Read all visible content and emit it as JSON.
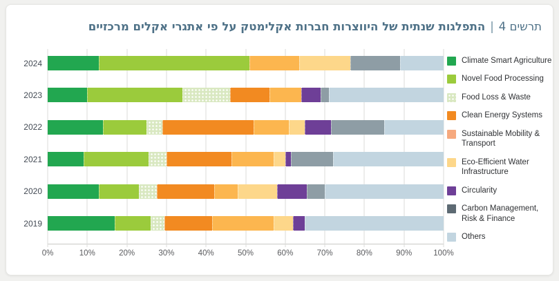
{
  "chart_data": {
    "type": "bar",
    "orientation": "horizontal",
    "stacked": true,
    "unit": "%",
    "title_prefix": "תרשים 4",
    "title_separator": "|",
    "title": "התפלגות שנתית של היווצרות חברות אקלימטק על פי אתגרי אקלים מרכזיים",
    "title_color": "#4e7187",
    "categories": [
      "2024",
      "2023",
      "2022",
      "2021",
      "2020",
      "2019"
    ],
    "series": [
      {
        "name": "Climate Smart Agriculture",
        "color": "#22a750",
        "values": [
          13,
          10,
          14,
          9,
          13,
          17
        ]
      },
      {
        "name": "Novel Food Processing",
        "color": "#9bcb3c",
        "values": [
          38,
          24,
          11,
          16.5,
          10,
          9
        ]
      },
      {
        "name": "Food Loss & Waste",
        "color": "#d9e8c1",
        "pattern": "dots",
        "values": [
          0,
          12,
          4,
          4.5,
          4.5,
          3.5
        ]
      },
      {
        "name": "Clean Energy Systems",
        "color": "#f28a21",
        "values": [
          0,
          10,
          23,
          16.5,
          14.5,
          12
        ]
      },
      {
        "name": "Sustainable Mobility & Transport",
        "color": "#fcb64f",
        "legend_color": "#f6a97e",
        "values": [
          12.5,
          8,
          9,
          10.5,
          6,
          15.5
        ]
      },
      {
        "name": "Eco-Efficient Water Infrastructure",
        "color": "#fdd78a",
        "values": [
          13,
          0,
          4,
          3,
          10,
          5
        ]
      },
      {
        "name": "Circularity",
        "color": "#6e3f97",
        "values": [
          0,
          5,
          6.5,
          1.5,
          7.5,
          3
        ]
      },
      {
        "name": "Carbon Management, Risk & Finance",
        "color": "#8e9da5",
        "legend_color": "#5d6a73",
        "values": [
          12.5,
          2,
          13.5,
          10.5,
          4.5,
          0
        ]
      },
      {
        "name": "Others",
        "color": "#c2d5e0",
        "values": [
          11,
          29,
          15,
          28,
          30,
          35
        ]
      }
    ],
    "x_axis": {
      "min": 0,
      "max": 100,
      "ticks": [
        "0%",
        "10%",
        "20%",
        "30%",
        "40%",
        "50%",
        "60%",
        "70%",
        "80%",
        "90%",
        "100%"
      ]
    },
    "legend_position": "right",
    "grid": true
  }
}
